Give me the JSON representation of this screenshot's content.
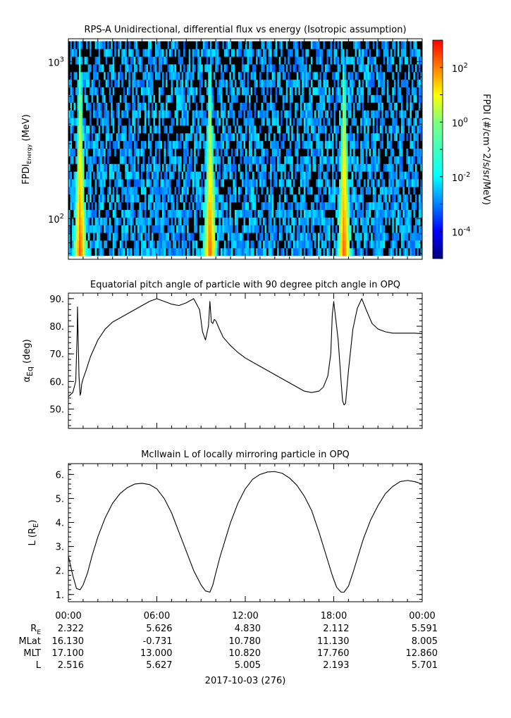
{
  "chart_data": [
    {
      "type": "heatmap",
      "title": "RPS-A Unidirectional, differential flux vs energy (Isotropic assumption)",
      "ylabel": "FPDI",
      "ylabel_sub": "Energy",
      "ylabel_unit": " (MeV)",
      "yscale": "log",
      "ylim": [
        55,
        1400
      ],
      "ytick_labels": [
        {
          "base": "10",
          "exp": "3"
        },
        {
          "base": "10",
          "exp": "2"
        }
      ],
      "ytick_values": [
        1000,
        100
      ],
      "xlim_hours": [
        0,
        24
      ],
      "colorbar": {
        "label": "FPDI (#/cm^2/s/sr/MeV)",
        "scale": "log",
        "range": [
          1e-05,
          1000
        ],
        "tick_labels": [
          {
            "base": "10",
            "exp": "2"
          },
          {
            "base": "10",
            "exp": "0"
          },
          {
            "base": "10",
            "exp": "-2"
          },
          {
            "base": "10",
            "exp": "-4"
          }
        ],
        "tick_values": [
          100,
          1,
          0.01,
          0.0001
        ]
      },
      "peak_times_hours": [
        0.8,
        9.6,
        18.7
      ],
      "background_level": 0.002,
      "peak_level": 30
    },
    {
      "type": "line",
      "title": "Equatorial pitch angle of particle with 90 degree pitch angle in OPQ",
      "ylabel_main": "α",
      "ylabel_sub": "Eq",
      "ylabel_unit": " (deg)",
      "ylim": [
        43,
        92
      ],
      "yticks": [
        50.0,
        60.0,
        70.0,
        80.0,
        90.0
      ],
      "ytick_labels": [
        "50.",
        "60.",
        "70.",
        "80.",
        "90."
      ],
      "xlim_hours": [
        0,
        24
      ],
      "series": [
        {
          "x": [
            0.0,
            0.3,
            0.5,
            0.6,
            0.62,
            0.72,
            0.8,
            0.85,
            0.9,
            1.0,
            1.2,
            1.5,
            2.0,
            2.5,
            3.0,
            3.5,
            4.0,
            4.5,
            5.0,
            5.5,
            6.0,
            6.5,
            7.0,
            7.5,
            8.0,
            8.5,
            8.9,
            9.1,
            9.3,
            9.5,
            9.6,
            9.7,
            9.8,
            9.9,
            10.0,
            10.2,
            10.5,
            11.0,
            11.5,
            12.0,
            12.5,
            13.0,
            13.5,
            14.0,
            14.5,
            15.0,
            15.5,
            16.0,
            16.5,
            17.0,
            17.3,
            17.6,
            17.8,
            17.9,
            18.0,
            18.3,
            18.5,
            18.6,
            18.7,
            18.8,
            19.0,
            19.3,
            19.6,
            19.9,
            20.2,
            20.6,
            21.0,
            21.5,
            22.0,
            22.5,
            23.0,
            23.5,
            24.0
          ],
          "y": [
            54.5,
            56.0,
            60.0,
            78.0,
            87.0,
            62.0,
            55.0,
            56.0,
            59.0,
            61.0,
            64.0,
            69.0,
            75.0,
            79.0,
            81.5,
            83.0,
            84.5,
            86.0,
            87.5,
            89.0,
            90.0,
            89.0,
            88.0,
            87.5,
            88.5,
            90.0,
            86.0,
            78.0,
            75.0,
            80.0,
            89.0,
            81.5,
            81.0,
            82.5,
            82.0,
            79.5,
            76.0,
            73.0,
            70.5,
            68.5,
            67.0,
            65.5,
            64.0,
            62.5,
            61.0,
            59.5,
            58.0,
            56.5,
            56.0,
            56.5,
            58.0,
            62.0,
            70.0,
            84.0,
            89.0,
            75.0,
            60.0,
            53.0,
            51.5,
            52.0,
            64.0,
            79.0,
            86.5,
            90.0,
            86.0,
            81.0,
            79.0,
            78.0,
            77.5,
            77.5,
            77.5,
            77.5,
            77.3
          ]
        }
      ]
    },
    {
      "type": "line",
      "title": "McIlwain L of locally mirroring particle in OPQ",
      "ylabel_main": "L (R",
      "ylabel_sub": "E",
      "ylabel_unit": ")",
      "ylim": [
        0.7,
        6.45
      ],
      "yticks": [
        1.0,
        2.0,
        3.0,
        4.0,
        5.0,
        6.0
      ],
      "ytick_labels": [
        "1.",
        "2.",
        "3.",
        "4.",
        "5.",
        "6."
      ],
      "xlim_hours": [
        0,
        24
      ],
      "series": [
        {
          "x": [
            0.0,
            0.3,
            0.55,
            0.8,
            1.0,
            1.3,
            1.6,
            2.0,
            2.5,
            3.0,
            3.5,
            4.0,
            4.5,
            5.0,
            5.5,
            6.0,
            6.5,
            7.0,
            7.5,
            8.0,
            8.5,
            9.0,
            9.3,
            9.6,
            9.8,
            10.0,
            10.3,
            10.7,
            11.0,
            11.5,
            12.0,
            12.5,
            13.0,
            13.5,
            14.0,
            14.5,
            15.0,
            15.5,
            16.0,
            16.5,
            17.0,
            17.5,
            17.9,
            18.2,
            18.5,
            18.7,
            19.0,
            19.3,
            19.6,
            20.0,
            20.5,
            21.0,
            21.5,
            22.0,
            22.5,
            23.0,
            23.5,
            24.0
          ],
          "y": [
            2.6,
            1.8,
            1.25,
            1.2,
            1.4,
            1.9,
            2.6,
            3.4,
            4.2,
            4.8,
            5.2,
            5.45,
            5.6,
            5.63,
            5.58,
            5.4,
            5.0,
            4.4,
            3.6,
            2.8,
            2.0,
            1.4,
            1.15,
            1.1,
            1.4,
            1.9,
            2.6,
            3.4,
            4.0,
            4.8,
            5.4,
            5.8,
            6.0,
            6.1,
            6.12,
            6.05,
            5.85,
            5.55,
            5.1,
            4.5,
            3.6,
            2.6,
            1.8,
            1.3,
            1.1,
            1.1,
            1.35,
            1.9,
            2.5,
            3.3,
            4.1,
            4.7,
            5.2,
            5.5,
            5.7,
            5.75,
            5.7,
            5.6
          ]
        }
      ]
    }
  ],
  "time_axis": {
    "tick_labels": [
      "00:00",
      "06:00",
      "12:00",
      "18:00",
      "00:00"
    ],
    "row_labels": [
      "R",
      "MLat",
      "MLT",
      "L"
    ],
    "row_label_r_sub": "E",
    "rows": [
      [
        "2.322",
        "5.626",
        "4.830",
        "2.112",
        "5.591"
      ],
      [
        "16.130",
        "-0.731",
        "10.780",
        "11.130",
        "8.005"
      ],
      [
        "17.100",
        "13.000",
        "10.820",
        "17.760",
        "12.860"
      ],
      [
        "2.516",
        "5.627",
        "5.005",
        "2.193",
        "5.701"
      ]
    ],
    "date_label": "2017-10-03 (276)"
  }
}
